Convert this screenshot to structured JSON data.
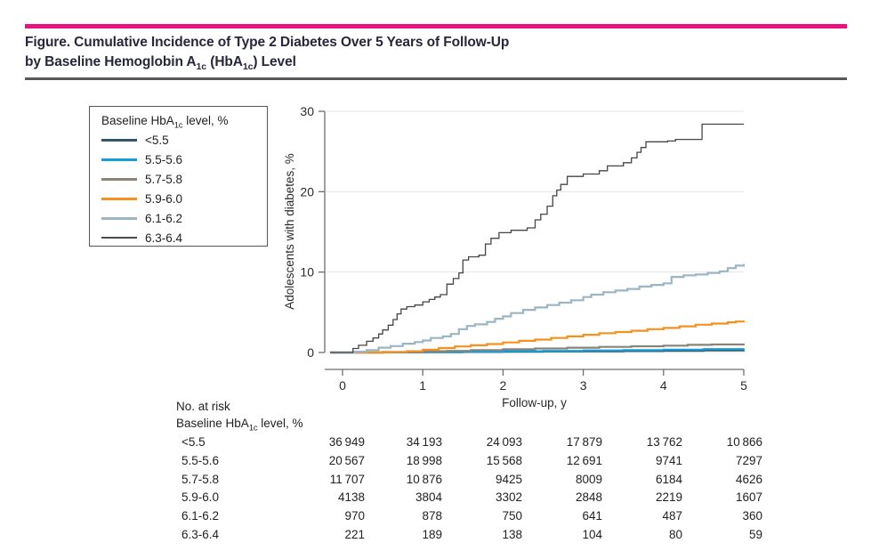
{
  "figure": {
    "rule_color": "#e9127e",
    "divider_color": "#58585a",
    "title_line1": "Figure. Cumulative Incidence of Type 2 Diabetes Over 5 Years of Follow-Up",
    "title_line2": "by Baseline Hemoglobin A~1c~ (HbA~1c~) Level"
  },
  "legend": {
    "title": "Baseline HbA~1c~ level, %",
    "items": [
      {
        "label": "<5.5",
        "color": "#33576a",
        "thickness": 3
      },
      {
        "label": "5.5-5.6",
        "color": "#129fdb",
        "thickness": 3
      },
      {
        "label": "5.7-5.8",
        "color": "#8b8278",
        "thickness": 3
      },
      {
        "label": "5.9-6.0",
        "color": "#f5921f",
        "thickness": 3
      },
      {
        "label": "6.1-6.2",
        "color": "#9ab5c5",
        "thickness": 3
      },
      {
        "label": "6.3-6.4",
        "color": "#4a4a4a",
        "thickness": 1.5
      }
    ]
  },
  "chart_data": {
    "type": "line",
    "subtype": "step-cumulative-incidence",
    "title": "Cumulative incidence of type 2 diabetes by baseline HbA1c level",
    "xlabel": "Follow-up, y",
    "ylabel": "Adolescents with diabetes, %",
    "xlim": [
      0,
      5
    ],
    "ylim": [
      0,
      30
    ],
    "xticks": [
      0,
      1,
      2,
      3,
      4,
      5
    ],
    "yticks": [
      0,
      10,
      20,
      30
    ],
    "grid": "horizontal",
    "grid_color": "#e4e4e4",
    "axis_color": "#6e6e6e",
    "legend_position": "outside-left",
    "series": [
      {
        "name": "<5.5",
        "color": "#33576a",
        "width": 2.2,
        "points": [
          [
            0,
            0
          ],
          [
            0.5,
            0.01
          ],
          [
            1,
            0.04
          ],
          [
            1.5,
            0.07
          ],
          [
            2,
            0.1
          ],
          [
            2.5,
            0.13
          ],
          [
            3,
            0.16
          ],
          [
            3.5,
            0.19
          ],
          [
            4,
            0.22
          ],
          [
            4.5,
            0.25
          ],
          [
            5,
            0.28
          ]
        ]
      },
      {
        "name": "5.5-5.6",
        "color": "#129fdb",
        "width": 2.2,
        "points": [
          [
            0,
            0
          ],
          [
            0.5,
            0.02
          ],
          [
            1,
            0.06
          ],
          [
            1.5,
            0.1
          ],
          [
            2,
            0.15
          ],
          [
            2.5,
            0.2
          ],
          [
            3,
            0.25
          ],
          [
            3.5,
            0.3
          ],
          [
            4,
            0.35
          ],
          [
            4.5,
            0.42
          ],
          [
            5,
            0.5
          ]
        ]
      },
      {
        "name": "5.7-5.8",
        "color": "#8b8278",
        "width": 2.2,
        "points": [
          [
            0,
            0
          ],
          [
            0.5,
            0.05
          ],
          [
            1,
            0.15
          ],
          [
            1.3,
            0.2
          ],
          [
            1.6,
            0.3
          ],
          [
            2,
            0.4
          ],
          [
            2.4,
            0.5
          ],
          [
            2.8,
            0.6
          ],
          [
            3.2,
            0.7
          ],
          [
            3.6,
            0.78
          ],
          [
            4,
            0.85
          ],
          [
            4.3,
            0.95
          ],
          [
            4.6,
            1.0
          ],
          [
            5,
            1.1
          ]
        ]
      },
      {
        "name": "5.9-6.0",
        "color": "#f5921f",
        "width": 2.2,
        "points": [
          [
            0,
            0
          ],
          [
            0.6,
            0.05
          ],
          [
            0.8,
            0.15
          ],
          [
            1,
            0.35
          ],
          [
            1.2,
            0.55
          ],
          [
            1.4,
            0.75
          ],
          [
            1.6,
            0.9
          ],
          [
            1.8,
            1.05
          ],
          [
            2,
            1.25
          ],
          [
            2.2,
            1.45
          ],
          [
            2.4,
            1.6
          ],
          [
            2.6,
            1.8
          ],
          [
            2.8,
            2.0
          ],
          [
            3,
            2.2
          ],
          [
            3.2,
            2.4
          ],
          [
            3.4,
            2.55
          ],
          [
            3.6,
            2.7
          ],
          [
            3.8,
            2.9
          ],
          [
            4,
            3.05
          ],
          [
            4.2,
            3.25
          ],
          [
            4.4,
            3.45
          ],
          [
            4.6,
            3.6
          ],
          [
            4.8,
            3.75
          ],
          [
            4.9,
            3.85
          ],
          [
            5,
            3.95
          ]
        ]
      },
      {
        "name": "6.1-6.2",
        "color": "#9ab5c5",
        "width": 2.2,
        "points": [
          [
            0,
            0
          ],
          [
            0.15,
            0.1
          ],
          [
            0.3,
            0.3
          ],
          [
            0.45,
            0.6
          ],
          [
            0.6,
            0.8
          ],
          [
            0.75,
            1.1
          ],
          [
            0.9,
            1.3
          ],
          [
            1,
            1.5
          ],
          [
            1.1,
            1.8
          ],
          [
            1.25,
            2.0
          ],
          [
            1.35,
            2.3
          ],
          [
            1.45,
            2.9
          ],
          [
            1.55,
            3.3
          ],
          [
            1.65,
            3.5
          ],
          [
            1.8,
            3.8
          ],
          [
            1.9,
            4.2
          ],
          [
            2,
            4.5
          ],
          [
            2.1,
            4.9
          ],
          [
            2.25,
            5.3
          ],
          [
            2.4,
            5.6
          ],
          [
            2.55,
            5.9
          ],
          [
            2.7,
            6.2
          ],
          [
            2.85,
            6.5
          ],
          [
            3,
            6.9
          ],
          [
            3.1,
            7.2
          ],
          [
            3.25,
            7.5
          ],
          [
            3.4,
            7.7
          ],
          [
            3.55,
            7.9
          ],
          [
            3.7,
            8.2
          ],
          [
            3.85,
            8.4
          ],
          [
            4,
            8.6
          ],
          [
            4.1,
            9.4
          ],
          [
            4.25,
            9.6
          ],
          [
            4.4,
            9.7
          ],
          [
            4.55,
            9.9
          ],
          [
            4.7,
            10.1
          ],
          [
            4.8,
            10.5
          ],
          [
            4.9,
            10.8
          ],
          [
            5,
            11.0
          ]
        ]
      },
      {
        "name": "6.3-6.4",
        "color": "#464646",
        "width": 1.3,
        "points": [
          [
            0,
            0
          ],
          [
            0.13,
            0.5
          ],
          [
            0.2,
            0.9
          ],
          [
            0.3,
            1.4
          ],
          [
            0.38,
            1.8
          ],
          [
            0.45,
            2.3
          ],
          [
            0.5,
            2.8
          ],
          [
            0.57,
            3.4
          ],
          [
            0.63,
            4.1
          ],
          [
            0.68,
            4.8
          ],
          [
            0.73,
            5.4
          ],
          [
            0.8,
            5.7
          ],
          [
            0.9,
            5.9
          ],
          [
            1,
            6.3
          ],
          [
            1.08,
            6.6
          ],
          [
            1.15,
            6.9
          ],
          [
            1.22,
            7.2
          ],
          [
            1.3,
            8.5
          ],
          [
            1.38,
            9.2
          ],
          [
            1.45,
            9.9
          ],
          [
            1.5,
            11.5
          ],
          [
            1.57,
            11.9
          ],
          [
            1.7,
            12.1
          ],
          [
            1.78,
            13.5
          ],
          [
            1.85,
            14.2
          ],
          [
            1.95,
            14.9
          ],
          [
            2.1,
            15.2
          ],
          [
            2.3,
            15.5
          ],
          [
            2.4,
            16.5
          ],
          [
            2.47,
            17.2
          ],
          [
            2.55,
            18.2
          ],
          [
            2.62,
            19.5
          ],
          [
            2.67,
            20.2
          ],
          [
            2.72,
            20.9
          ],
          [
            2.8,
            21.9
          ],
          [
            3,
            22.2
          ],
          [
            3.2,
            22.6
          ],
          [
            3.3,
            23.2
          ],
          [
            3.5,
            23.6
          ],
          [
            3.6,
            24.2
          ],
          [
            3.67,
            24.9
          ],
          [
            3.72,
            25.5
          ],
          [
            3.78,
            26.2
          ],
          [
            4.05,
            26.3
          ],
          [
            4.15,
            26.5
          ],
          [
            4.48,
            28.4
          ],
          [
            5,
            28.4
          ]
        ]
      }
    ]
  },
  "risk_table": {
    "heading": "No. at risk",
    "subheading": "Baseline HbA~1c~ level, %",
    "time_points": [
      0,
      1,
      2,
      3,
      4,
      5
    ],
    "rows": [
      {
        "label": "<5.5",
        "values": [
          "36 949",
          "34 193",
          "24 093",
          "17 879",
          "13 762",
          "10 866"
        ]
      },
      {
        "label": "5.5-5.6",
        "values": [
          "20 567",
          "18 998",
          "15 568",
          "12 691",
          "9741",
          "7297"
        ]
      },
      {
        "label": "5.7-5.8",
        "values": [
          "11 707",
          "10 876",
          "9425",
          "8009",
          "6184",
          "4626"
        ]
      },
      {
        "label": "5.9-6.0",
        "values": [
          "4138",
          "3804",
          "3302",
          "2848",
          "2219",
          "1607"
        ]
      },
      {
        "label": "6.1-6.2",
        "values": [
          "970",
          "878",
          "750",
          "641",
          "487",
          "360"
        ]
      },
      {
        "label": "6.3-6.4",
        "values": [
          "221",
          "189",
          "138",
          "104",
          "80",
          "59"
        ]
      }
    ]
  }
}
